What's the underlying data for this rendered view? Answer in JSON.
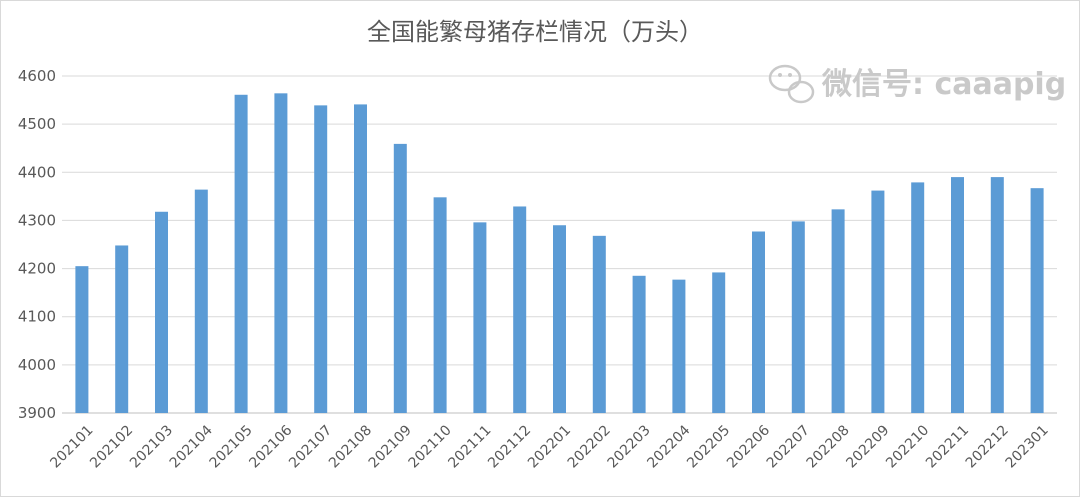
{
  "chart_data": {
    "type": "bar",
    "title": "全国能繁母猪存栏情况（万头）",
    "xlabel": "",
    "ylabel": "",
    "ylim": [
      3900,
      4600
    ],
    "yticks": [
      3900,
      4000,
      4100,
      4200,
      4300,
      4400,
      4500,
      4600
    ],
    "grid": true,
    "legend": "none",
    "bar_color": "#5b9bd5",
    "categories": [
      "202101",
      "202102",
      "202103",
      "202104",
      "202105",
      "202106",
      "202107",
      "202108",
      "202109",
      "202110",
      "202111",
      "202112",
      "202201",
      "202202",
      "202203",
      "202204",
      "202205",
      "202206",
      "202207",
      "202208",
      "202209",
      "202210",
      "202211",
      "202212",
      "202301"
    ],
    "values": [
      4205,
      4248,
      4318,
      4364,
      4561,
      4564,
      4539,
      4541,
      4459,
      4348,
      4296,
      4329,
      4290,
      4268,
      4185,
      4177,
      4192,
      4277,
      4298,
      4323,
      4362,
      4379,
      4390,
      4390,
      4367
    ]
  },
  "watermark": {
    "text": "微信号: caaapig",
    "icon": "wechat-icon"
  }
}
